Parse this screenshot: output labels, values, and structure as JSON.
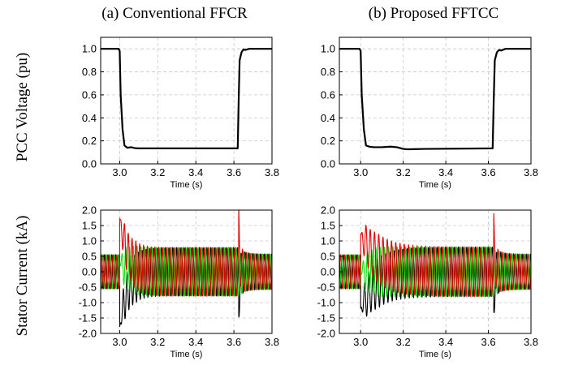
{
  "figure": {
    "column_titles": [
      "(a) Conventional FFCR",
      "(b) Proposed FFTCC"
    ],
    "row_labels": [
      "PCC Voltage (pu)",
      "Stator Current (kA)"
    ],
    "colors": {
      "phase_a": "#e00000",
      "phase_b": "#10e010",
      "phase_c": "#000000",
      "voltage": "#000000",
      "grid": "#c8c8c8"
    }
  },
  "chart_data": [
    {
      "type": "line",
      "panel": "voltage-a",
      "title": "",
      "xlabel": "Time (s)",
      "ylabel": "PCC Voltage (pu)",
      "xlim": [
        2.9,
        3.8
      ],
      "ylim": [
        0.0,
        1.1
      ],
      "xticks": [
        3.0,
        3.2,
        3.4,
        3.6,
        3.8
      ],
      "yticks": [
        0.0,
        0.2,
        0.4,
        0.6,
        0.8,
        1.0
      ],
      "grid": true,
      "series": [
        {
          "x": [
            2.9,
            2.995,
            3.0,
            3.005,
            3.015,
            3.025,
            3.04,
            3.06,
            3.08,
            3.1,
            3.3,
            3.62,
            3.625,
            3.63,
            3.64,
            3.65,
            3.66,
            3.68,
            3.7,
            3.8
          ],
          "y": [
            1.0,
            1.0,
            0.98,
            0.6,
            0.3,
            0.16,
            0.14,
            0.145,
            0.137,
            0.135,
            0.135,
            0.135,
            0.55,
            0.9,
            0.97,
            0.995,
            0.99,
            1.0,
            1.0,
            1.0
          ]
        }
      ]
    },
    {
      "type": "line",
      "panel": "voltage-b",
      "title": "",
      "xlabel": "Time (s)",
      "ylabel": "",
      "xlim": [
        2.9,
        3.8
      ],
      "ylim": [
        0.0,
        1.1
      ],
      "xticks": [
        3.0,
        3.2,
        3.4,
        3.6,
        3.8
      ],
      "yticks": [
        0.0,
        0.2,
        0.4,
        0.6,
        0.8,
        1.0
      ],
      "grid": true,
      "series": [
        {
          "x": [
            2.9,
            2.995,
            3.0,
            3.005,
            3.015,
            3.025,
            3.04,
            3.06,
            3.1,
            3.14,
            3.17,
            3.2,
            3.22,
            3.3,
            3.62,
            3.625,
            3.63,
            3.64,
            3.65,
            3.66,
            3.68,
            3.8
          ],
          "y": [
            1.0,
            1.0,
            0.98,
            0.6,
            0.3,
            0.16,
            0.15,
            0.145,
            0.145,
            0.15,
            0.145,
            0.13,
            0.127,
            0.13,
            0.135,
            0.55,
            0.9,
            0.97,
            0.99,
            0.985,
            1.0,
            1.0
          ]
        }
      ]
    },
    {
      "type": "line",
      "panel": "current-a",
      "title": "",
      "xlabel": "Time (s)",
      "ylabel": "Stator Current (kA)",
      "xlim": [
        2.9,
        3.8
      ],
      "ylim": [
        -2.0,
        2.0
      ],
      "xticks": [
        3.0,
        3.2,
        3.4,
        3.6,
        3.8
      ],
      "yticks": [
        -2.0,
        -1.5,
        -1.0,
        -0.5,
        0.0,
        0.5,
        1.0,
        1.5,
        2.0
      ],
      "grid": true,
      "frequency_hz": 50,
      "fault_start": 3.0,
      "fault_end": 3.625,
      "amplitude_pre": 0.55,
      "amplitude_fault": 0.78,
      "amplitude_post": 0.57,
      "series": [
        {
          "phase": "c",
          "dc_offset": -1.8,
          "dc_tau": 0.04,
          "post_spike": -1.05
        },
        {
          "phase": "b",
          "dc_offset": 0.3,
          "dc_tau": 0.05,
          "post_spike": -0.3
        },
        {
          "phase": "a",
          "dc_offset": 1.75,
          "dc_tau": 0.04,
          "post_spike": 1.45
        }
      ]
    },
    {
      "type": "line",
      "panel": "current-b",
      "title": "",
      "xlabel": "Time (s)",
      "ylabel": "",
      "xlim": [
        2.9,
        3.8
      ],
      "ylim": [
        -2.0,
        2.0
      ],
      "xticks": [
        3.0,
        3.2,
        3.4,
        3.6,
        3.8
      ],
      "yticks": [
        -2.0,
        -1.5,
        -1.0,
        -0.5,
        0.0,
        0.5,
        1.0,
        1.5,
        2.0
      ],
      "grid": true,
      "frequency_hz": 50,
      "fault_start": 3.0,
      "fault_end": 3.625,
      "amplitude_pre": 0.55,
      "amplitude_fault": 0.8,
      "amplitude_post": 0.57,
      "series": [
        {
          "phase": "c",
          "dc_offset": -1.2,
          "dc_tau": 0.07,
          "post_spike": -0.85
        },
        {
          "phase": "b",
          "dc_offset": 0.0,
          "dc_tau": 0.1,
          "post_spike": -0.2
        },
        {
          "phase": "a",
          "dc_offset": 1.2,
          "dc_tau": 0.08,
          "post_spike": 1.15
        }
      ]
    }
  ]
}
